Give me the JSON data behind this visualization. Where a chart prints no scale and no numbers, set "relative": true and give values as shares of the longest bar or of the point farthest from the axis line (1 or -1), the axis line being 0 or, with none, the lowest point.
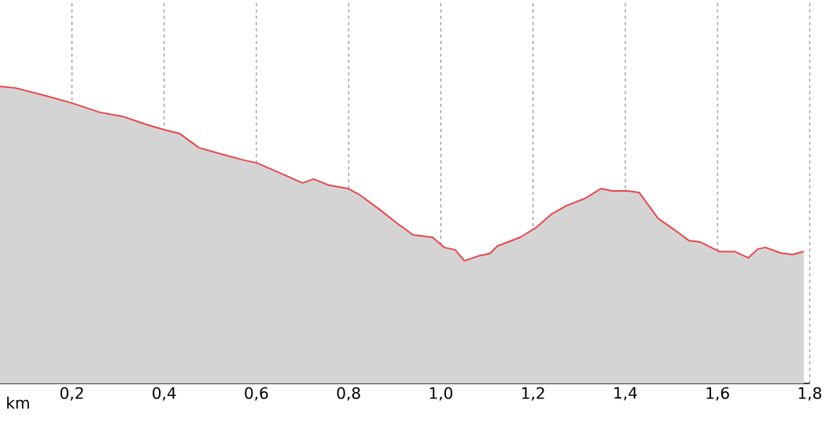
{
  "chart_data": {
    "type": "area",
    "relative": true,
    "xlabel": "km",
    "grid": true,
    "x": [
      0.044,
      0.077,
      0.144,
      0.2,
      0.26,
      0.31,
      0.359,
      0.401,
      0.434,
      0.475,
      0.525,
      0.575,
      0.6,
      0.658,
      0.7,
      0.724,
      0.758,
      0.799,
      0.824,
      0.866,
      0.907,
      0.94,
      0.982,
      1.007,
      1.031,
      1.051,
      1.081,
      1.106,
      1.123,
      1.172,
      1.206,
      1.239,
      1.272,
      1.314,
      1.347,
      1.372,
      1.405,
      1.43,
      1.471,
      1.505,
      1.538,
      1.563,
      1.604,
      1.637,
      1.667,
      1.687,
      1.704,
      1.737,
      1.762,
      1.787
    ],
    "series": [
      {
        "color": "#e8474d",
        "values": [
          1.0,
          0.995,
          0.968,
          0.944,
          0.913,
          0.899,
          0.873,
          0.854,
          0.841,
          0.794,
          0.772,
          0.751,
          0.743,
          0.704,
          0.675,
          0.688,
          0.667,
          0.656,
          0.635,
          0.587,
          0.537,
          0.5,
          0.492,
          0.458,
          0.45,
          0.413,
          0.429,
          0.437,
          0.463,
          0.492,
          0.524,
          0.569,
          0.598,
          0.624,
          0.656,
          0.648,
          0.648,
          0.643,
          0.556,
          0.519,
          0.481,
          0.476,
          0.444,
          0.444,
          0.423,
          0.452,
          0.458,
          0.439,
          0.434,
          0.444
        ]
      }
    ],
    "xlim": [
      0.044,
      1.8
    ],
    "xticks": [
      {
        "value": 0.2,
        "label": "0,2"
      },
      {
        "value": 0.4,
        "label": "0,4"
      },
      {
        "value": 0.6,
        "label": "0,6"
      },
      {
        "value": 0.8,
        "label": "0,8"
      },
      {
        "value": 1.0,
        "label": "1,0"
      },
      {
        "value": 1.2,
        "label": "1,2"
      },
      {
        "value": 1.4,
        "label": "1,4"
      },
      {
        "value": 1.6,
        "label": "1,6"
      },
      {
        "value": 1.8,
        "label": "1,8"
      }
    ]
  }
}
